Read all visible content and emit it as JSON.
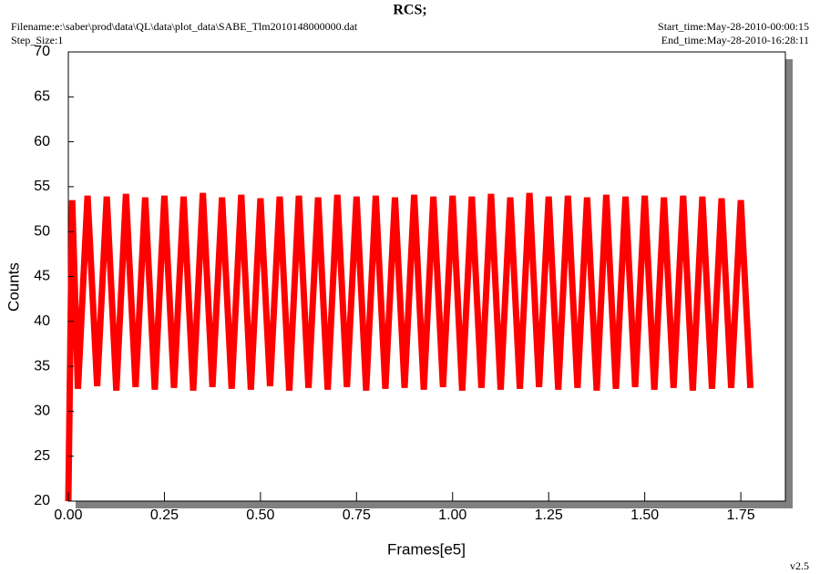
{
  "chart_data": {
    "type": "line",
    "title": "RCS;",
    "filename": "Filename:e:\\saber\\prod\\data\\QL\\data\\plot_data\\SABE_Tlm2010148000000.dat",
    "step_size": "Step_Size:1",
    "start_time": "Start_time:May-28-2010-00:00:15",
    "end_time": "End_time:May-28-2010-16:28:11",
    "version": "v2.5",
    "x_label": "Frames[e5]",
    "y_label": "Counts",
    "color": "#ff0000",
    "x": [
      0,
      0.01,
      0.025,
      0.05,
      0.075,
      0.1,
      0.125,
      0.15,
      0.175,
      0.2,
      0.225,
      0.25,
      0.275,
      0.3,
      0.325,
      0.35,
      0.375,
      0.4,
      0.425,
      0.45,
      0.475,
      0.5,
      0.525,
      0.55,
      0.575,
      0.6,
      0.625,
      0.65,
      0.675,
      0.7,
      0.725,
      0.75,
      0.775,
      0.8,
      0.825,
      0.85,
      0.875,
      0.9,
      0.925,
      0.95,
      0.975,
      1.0,
      1.025,
      1.05,
      1.075,
      1.1,
      1.125,
      1.15,
      1.175,
      1.2,
      1.225,
      1.25,
      1.275,
      1.3,
      1.325,
      1.35,
      1.375,
      1.4,
      1.425,
      1.45,
      1.475,
      1.5,
      1.525,
      1.55,
      1.575,
      1.6,
      1.625,
      1.65,
      1.675,
      1.7,
      1.725,
      1.75,
      1.775
    ],
    "values": [
      20,
      53.5,
      32.5,
      54,
      32.8,
      53.9,
      32.3,
      54.2,
      32.7,
      53.8,
      32.4,
      54,
      32.6,
      53.9,
      32.3,
      54.3,
      32.7,
      53.8,
      32.5,
      54.1,
      32.4,
      53.7,
      32.8,
      53.9,
      32.3,
      54,
      32.6,
      53.8,
      32.4,
      54.1,
      32.7,
      53.9,
      32.3,
      54,
      32.5,
      53.8,
      32.6,
      54.1,
      32.4,
      53.9,
      32.7,
      54,
      32.3,
      53.9,
      32.6,
      54.2,
      32.4,
      53.8,
      32.5,
      54.3,
      32.7,
      53.9,
      32.4,
      54,
      32.6,
      53.8,
      32.3,
      54.1,
      32.5,
      53.9,
      32.7,
      54,
      32.4,
      53.8,
      32.6,
      54,
      32.3,
      53.9,
      32.5,
      53.7,
      32.6,
      53.5,
      32.6
    ],
    "xlim": [
      0,
      1.866
    ],
    "ylim": [
      20,
      70
    ],
    "xticks": [
      {
        "value": 0,
        "label": "0.00"
      },
      {
        "value": 0.25,
        "label": "0.25"
      },
      {
        "value": 0.5,
        "label": "0.50"
      },
      {
        "value": 0.75,
        "label": "0.75"
      },
      {
        "value": 1,
        "label": "1.00"
      },
      {
        "value": 1.25,
        "label": "1.25"
      },
      {
        "value": 1.5,
        "label": "1.50"
      },
      {
        "value": 1.75,
        "label": "1.75"
      }
    ],
    "yticks": [
      20,
      25,
      30,
      35,
      40,
      45,
      50,
      55,
      60,
      65,
      70
    ]
  }
}
